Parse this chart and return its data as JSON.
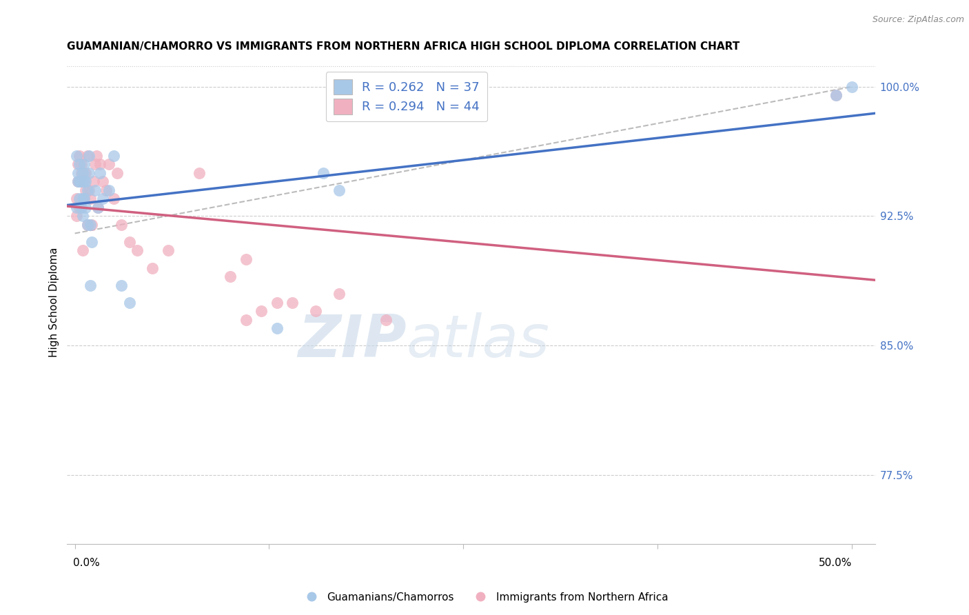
{
  "title": "GUAMANIAN/CHAMORRO VS IMMIGRANTS FROM NORTHERN AFRICA HIGH SCHOOL DIPLOMA CORRELATION CHART",
  "source": "Source: ZipAtlas.com",
  "ylabel": "High School Diploma",
  "scatter_blue_label": "Guamanians/Chamorros",
  "scatter_pink_label": "Immigrants from Northern Africa",
  "blue_R": 0.262,
  "blue_N": 37,
  "pink_R": 0.294,
  "pink_N": 44,
  "blue_color": "#a8c8e8",
  "pink_color": "#f0b0c0",
  "blue_line_color": "#4472c4",
  "pink_line_color": "#d06080",
  "gray_line_color": "#aaaaaa",
  "legend_label_color": "#4472c4",
  "right_axis_color": "#4472c4",
  "ymin": 0.735,
  "ymax": 1.015,
  "xmin": -0.005,
  "xmax": 0.515,
  "ytick_positions": [
    0.775,
    0.85,
    0.925,
    1.0
  ],
  "ytick_labels": [
    "77.5%",
    "85.0%",
    "92.5%",
    "100.0%"
  ],
  "blue_x": [
    0.001,
    0.001,
    0.002,
    0.002,
    0.003,
    0.003,
    0.003,
    0.004,
    0.004,
    0.005,
    0.005,
    0.005,
    0.006,
    0.006,
    0.006,
    0.007,
    0.007,
    0.008,
    0.008,
    0.009,
    0.009,
    0.01,
    0.01,
    0.011,
    0.013,
    0.015,
    0.016,
    0.018,
    0.022,
    0.025,
    0.03,
    0.035,
    0.16,
    0.17,
    0.49,
    0.5,
    0.13
  ],
  "blue_y": [
    0.93,
    0.96,
    0.945,
    0.95,
    0.935,
    0.945,
    0.955,
    0.93,
    0.945,
    0.925,
    0.935,
    0.95,
    0.935,
    0.945,
    0.955,
    0.93,
    0.945,
    0.92,
    0.94,
    0.95,
    0.96,
    0.885,
    0.92,
    0.91,
    0.94,
    0.93,
    0.95,
    0.935,
    0.94,
    0.96,
    0.885,
    0.875,
    0.95,
    0.94,
    0.995,
    1.0,
    0.86
  ],
  "pink_x": [
    0.001,
    0.001,
    0.002,
    0.002,
    0.003,
    0.003,
    0.004,
    0.004,
    0.005,
    0.005,
    0.006,
    0.007,
    0.007,
    0.008,
    0.008,
    0.009,
    0.01,
    0.011,
    0.012,
    0.013,
    0.014,
    0.015,
    0.016,
    0.018,
    0.02,
    0.022,
    0.025,
    0.027,
    0.03,
    0.035,
    0.04,
    0.05,
    0.06,
    0.08,
    0.1,
    0.11,
    0.14,
    0.155,
    0.17,
    0.2,
    0.49,
    0.11,
    0.12,
    0.13
  ],
  "pink_y": [
    0.925,
    0.935,
    0.945,
    0.955,
    0.93,
    0.96,
    0.95,
    0.955,
    0.905,
    0.945,
    0.935,
    0.94,
    0.95,
    0.92,
    0.96,
    0.94,
    0.935,
    0.92,
    0.945,
    0.955,
    0.96,
    0.93,
    0.955,
    0.945,
    0.94,
    0.955,
    0.935,
    0.95,
    0.92,
    0.91,
    0.905,
    0.895,
    0.905,
    0.95,
    0.89,
    0.9,
    0.875,
    0.87,
    0.88,
    0.865,
    0.995,
    0.865,
    0.87,
    0.875
  ],
  "watermark_zip": "ZIP",
  "watermark_atlas": "atlas",
  "background_color": "#ffffff"
}
